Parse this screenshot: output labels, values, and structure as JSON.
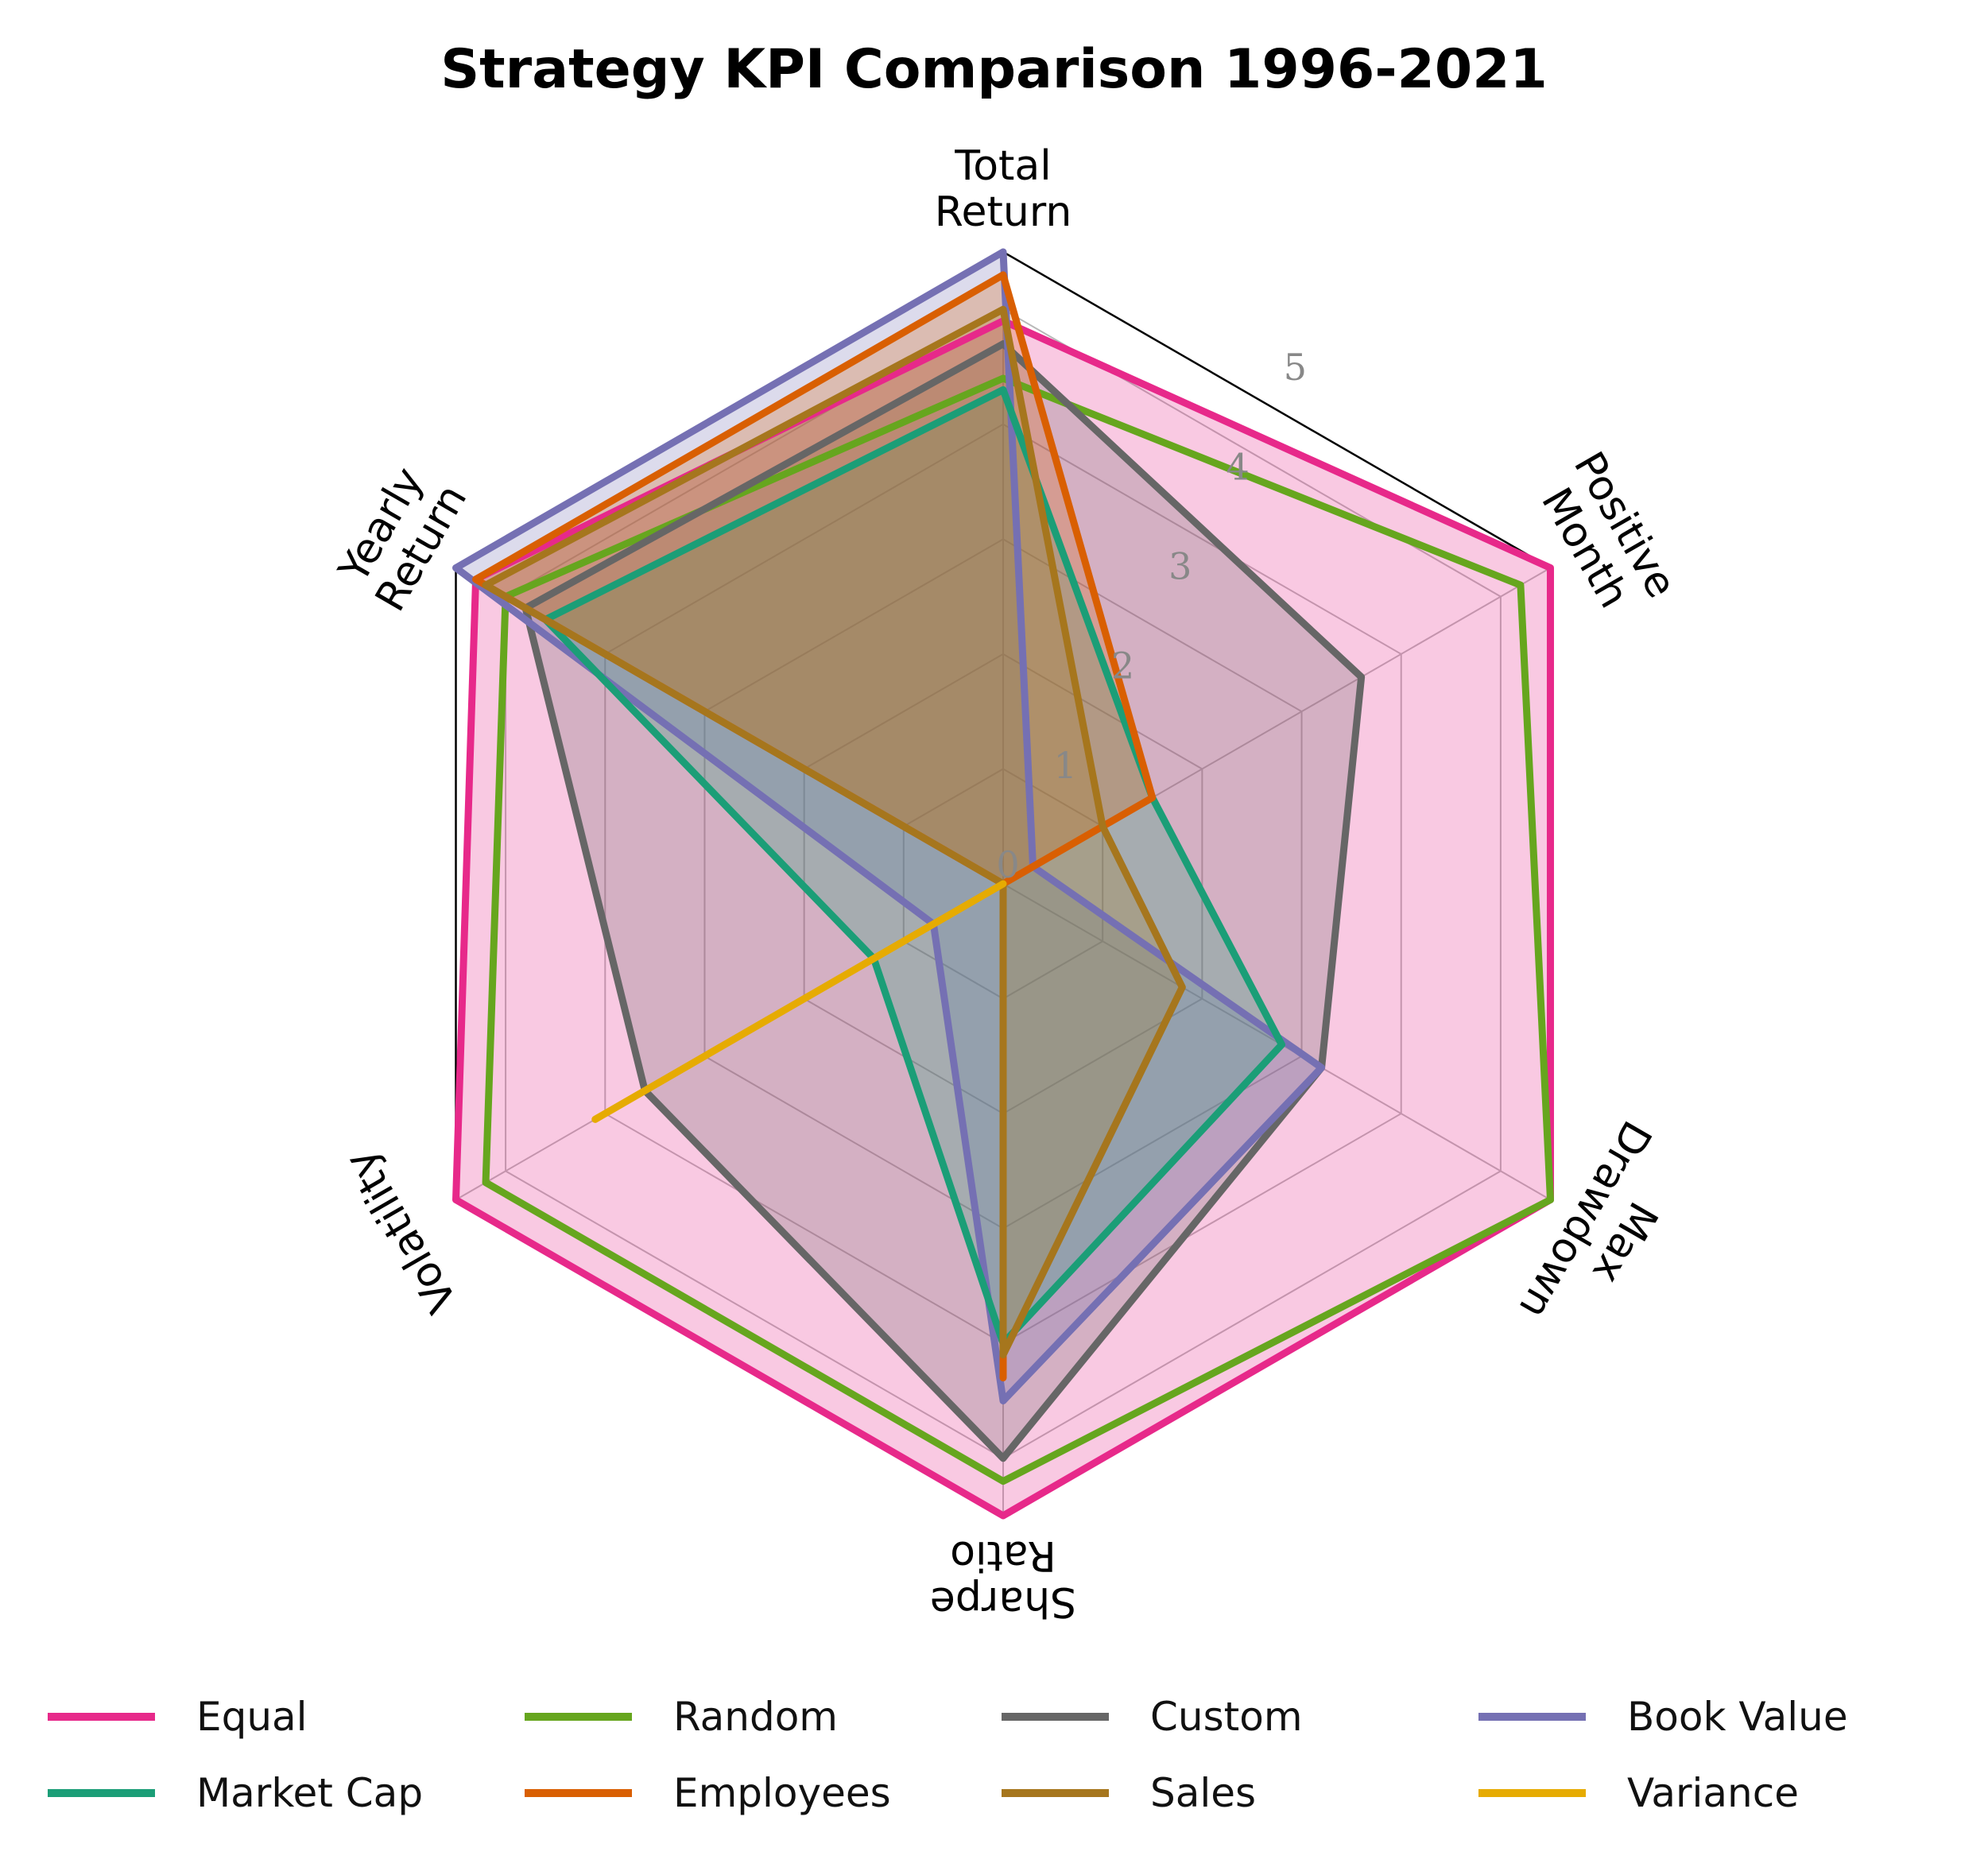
{
  "chart_data": {
    "type": "radar",
    "title": "Strategy KPI Comparison 1996-2021",
    "axes": [
      "Total\nReturn",
      "Positive\nMonth",
      "Max\nDrawdown",
      "Sharpe\nRatio",
      "Volatility",
      "Yearly\nReturn"
    ],
    "rlim": [
      0,
      5.5
    ],
    "rticks": [
      0,
      1,
      2,
      3,
      4,
      5
    ],
    "grid": true,
    "legend_position": "bottom",
    "series": [
      {
        "name": "Equal",
        "color": "#e7298a",
        "values": [
          4.9,
          5.5,
          5.5,
          5.5,
          5.5,
          5.3
        ],
        "fill": true
      },
      {
        "name": "Random",
        "color": "#66a61e",
        "values": [
          4.4,
          5.2,
          5.5,
          5.2,
          5.2,
          5.0
        ],
        "fill": false
      },
      {
        "name": "Custom",
        "color": "#666666",
        "values": [
          4.7,
          3.6,
          3.2,
          5.0,
          3.6,
          4.8
        ],
        "fill": true
      },
      {
        "name": "Book Value",
        "color": "#7570b3",
        "values": [
          5.5,
          0.3,
          3.2,
          4.5,
          0.7,
          5.5
        ],
        "fill": true
      },
      {
        "name": "Market Cap",
        "color": "#1b9e77",
        "values": [
          4.3,
          1.5,
          2.8,
          4.0,
          1.3,
          4.6
        ],
        "fill": true
      },
      {
        "name": "Employees",
        "color": "#d95f02",
        "values": [
          5.3,
          1.5,
          0.0,
          4.3,
          0.0,
          5.3
        ],
        "fill": true
      },
      {
        "name": "Sales",
        "color": "#a6761d",
        "values": [
          5.0,
          1.0,
          1.8,
          4.1,
          0.0,
          5.2
        ],
        "fill": true
      },
      {
        "name": "Variance",
        "color": "#e6ab02",
        "values": [
          0.0,
          0.0,
          0.0,
          0.0,
          4.1,
          0.0
        ],
        "fill": false
      }
    ]
  }
}
